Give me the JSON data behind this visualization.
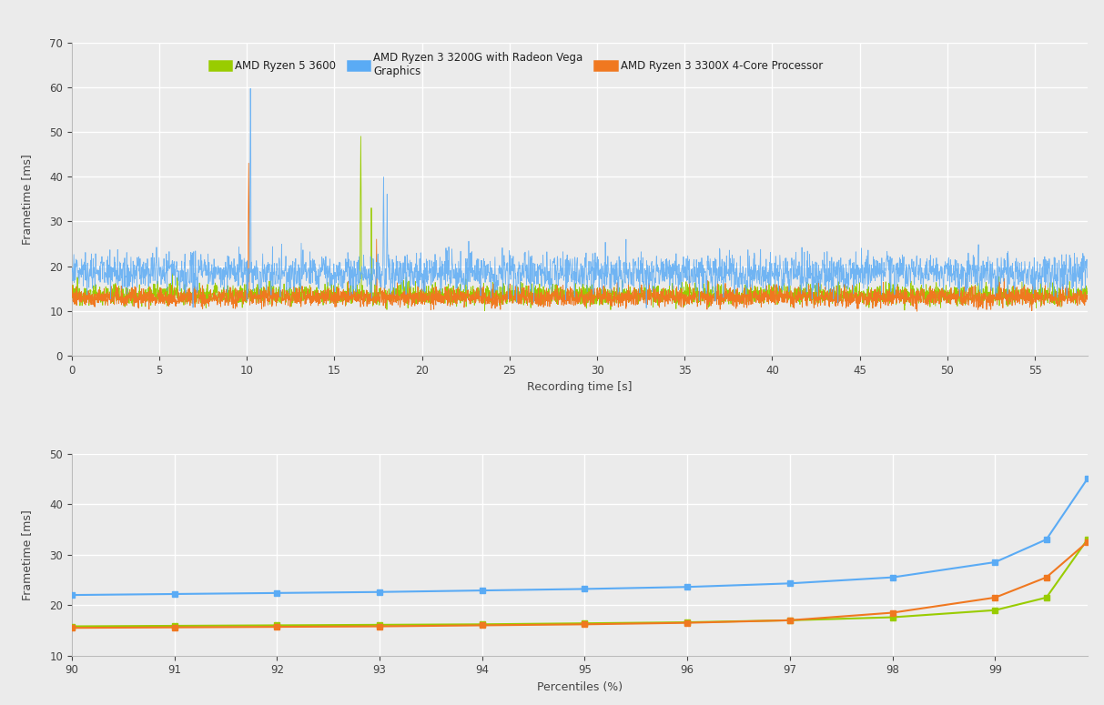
{
  "series": [
    {
      "label": "AMD Ryzen 5 3600",
      "color": "#99cc00",
      "linewidth": 0.6
    },
    {
      "label": "AMD Ryzen 3 3200G with Radeon Vega\nGraphics",
      "color": "#5aabf5",
      "linewidth": 0.6
    },
    {
      "label": "AMD Ryzen 3 3300X 4-Core Processor",
      "color": "#f07820",
      "linewidth": 0.6
    }
  ],
  "top_plot": {
    "xlabel": "Recording time [s]",
    "ylabel": "Frametime [ms]",
    "xlim": [
      0,
      58
    ],
    "ylim": [
      0,
      70
    ],
    "yticks": [
      0,
      10,
      20,
      30,
      40,
      50,
      60,
      70
    ],
    "xticks": [
      0,
      5,
      10,
      15,
      20,
      25,
      30,
      35,
      40,
      45,
      50,
      55
    ]
  },
  "bottom_plot": {
    "xlabel": "Percentiles (%)",
    "ylabel": "Frametime [ms]",
    "xlim": [
      90,
      99.9
    ],
    "ylim": [
      10,
      50
    ],
    "yticks": [
      10,
      20,
      30,
      40,
      50
    ],
    "xticks": [
      90,
      91,
      92,
      93,
      94,
      95,
      96,
      97,
      98,
      99
    ]
  },
  "background_color": "#ebebeb",
  "grid_color": "#ffffff",
  "percentile_data": {
    "percentiles": [
      90,
      91,
      92,
      93,
      94,
      95,
      96,
      97,
      98,
      99,
      99.5,
      99.9
    ],
    "ryzen5_3600": [
      15.8,
      15.9,
      16.0,
      16.1,
      16.2,
      16.4,
      16.6,
      17.0,
      17.6,
      19.0,
      21.5,
      33.0
    ],
    "ryzen3_3200g": [
      22.0,
      22.2,
      22.4,
      22.6,
      22.9,
      23.2,
      23.6,
      24.3,
      25.5,
      28.5,
      33.0,
      45.0
    ],
    "ryzen3_3300x": [
      15.5,
      15.6,
      15.7,
      15.8,
      16.0,
      16.2,
      16.5,
      17.0,
      18.5,
      21.5,
      25.5,
      32.5
    ]
  }
}
